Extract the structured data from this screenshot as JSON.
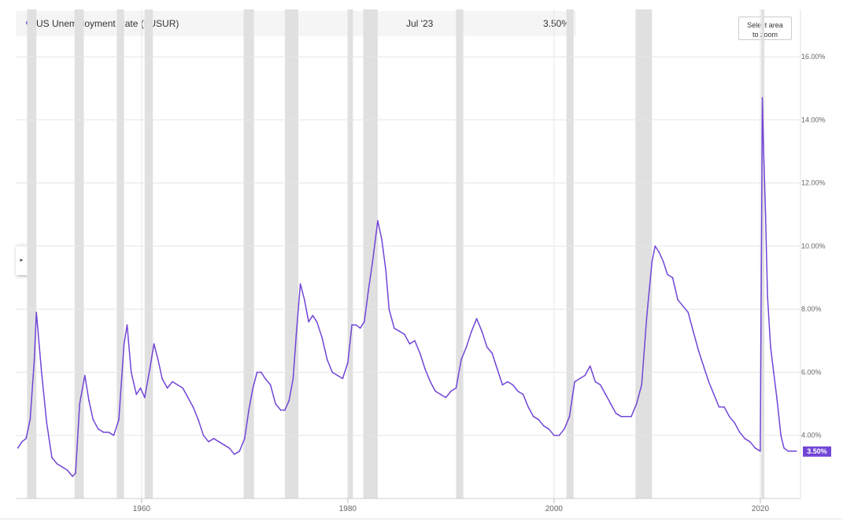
{
  "legend": {
    "series_name": "US Unemployment Rate (I:USUR)",
    "date": "Jul '23",
    "value": "3.50%"
  },
  "controls": {
    "zoom_label_line1": "Select area",
    "zoom_label_line2": "to zoom",
    "expand_arrow": "▸"
  },
  "colors": {
    "line": "#7145d6",
    "recession_band": "#e0e0e0",
    "grid": "#e6e6e6",
    "label_text": "#666666"
  },
  "chart_data": {
    "type": "line",
    "title": "",
    "xlabel": "",
    "ylabel": "",
    "xlim": [
      1947.8,
      2023.9
    ],
    "ylim": [
      2.0,
      17.5
    ],
    "grid": true,
    "y_ticks": [
      {
        "value": 4,
        "label": "4.00%"
      },
      {
        "value": 6,
        "label": "6.00%"
      },
      {
        "value": 8,
        "label": "8.00%"
      },
      {
        "value": 10,
        "label": "10.00%"
      },
      {
        "value": 12,
        "label": "12.00%"
      },
      {
        "value": 14,
        "label": "14.00%"
      },
      {
        "value": 16,
        "label": "16.00%"
      }
    ],
    "x_ticks": [
      {
        "value": 1960,
        "label": "1960"
      },
      {
        "value": 1980,
        "label": "1980"
      },
      {
        "value": 2000,
        "label": "2000"
      },
      {
        "value": 2020,
        "label": "2020"
      }
    ],
    "last_value_label": "3.50%",
    "recessions": [
      [
        1948.9,
        1949.8
      ],
      [
        1953.5,
        1954.4
      ],
      [
        1957.6,
        1958.3
      ],
      [
        1960.3,
        1961.1
      ],
      [
        1969.9,
        1970.9
      ],
      [
        1973.9,
        1975.2
      ],
      [
        1980.0,
        1980.5
      ],
      [
        1981.5,
        1982.9
      ],
      [
        1990.5,
        1991.2
      ],
      [
        2001.2,
        2001.9
      ],
      [
        2007.9,
        2009.5
      ],
      [
        2020.1,
        2020.4
      ]
    ],
    "series": [
      {
        "name": "US Unemployment Rate (I:USUR)",
        "x": [
          1948.0,
          1948.4,
          1948.8,
          1949.2,
          1949.6,
          1949.8,
          1950.3,
          1950.8,
          1951.3,
          1951.8,
          1952.3,
          1952.8,
          1953.3,
          1953.6,
          1954.0,
          1954.5,
          1954.9,
          1955.3,
          1955.8,
          1956.3,
          1956.8,
          1957.3,
          1957.8,
          1958.3,
          1958.6,
          1959.0,
          1959.5,
          1959.9,
          1960.3,
          1960.8,
          1961.2,
          1961.6,
          1962.0,
          1962.5,
          1963.0,
          1963.5,
          1964.0,
          1964.5,
          1965.0,
          1965.5,
          1966.0,
          1966.5,
          1967.0,
          1967.5,
          1968.0,
          1968.5,
          1969.0,
          1969.5,
          1970.0,
          1970.4,
          1970.8,
          1971.2,
          1971.6,
          1972.0,
          1972.5,
          1973.0,
          1973.5,
          1973.9,
          1974.3,
          1974.7,
          1975.0,
          1975.4,
          1975.8,
          1976.2,
          1976.6,
          1977.0,
          1977.5,
          1978.0,
          1978.5,
          1979.0,
          1979.5,
          1980.0,
          1980.4,
          1980.8,
          1981.2,
          1981.6,
          1982.0,
          1982.4,
          1982.9,
          1983.3,
          1983.7,
          1984.0,
          1984.5,
          1985.0,
          1985.5,
          1986.0,
          1986.5,
          1987.0,
          1987.5,
          1988.0,
          1988.5,
          1989.0,
          1989.5,
          1990.0,
          1990.5,
          1991.0,
          1991.5,
          1992.0,
          1992.5,
          1993.0,
          1993.5,
          1994.0,
          1994.5,
          1995.0,
          1995.5,
          1996.0,
          1996.5,
          1997.0,
          1997.5,
          1998.0,
          1998.5,
          1999.0,
          1999.5,
          2000.0,
          2000.5,
          2001.0,
          2001.5,
          2002.0,
          2002.5,
          2003.0,
          2003.5,
          2004.0,
          2004.5,
          2005.0,
          2005.5,
          2006.0,
          2006.5,
          2007.0,
          2007.5,
          2008.0,
          2008.5,
          2009.0,
          2009.5,
          2009.8,
          2010.2,
          2010.6,
          2011.0,
          2011.5,
          2012.0,
          2012.5,
          2013.0,
          2013.5,
          2014.0,
          2014.5,
          2015.0,
          2015.5,
          2016.0,
          2016.5,
          2017.0,
          2017.5,
          2018.0,
          2018.5,
          2019.0,
          2019.5,
          2020.0,
          2020.2,
          2020.3,
          2020.5,
          2020.7,
          2021.0,
          2021.3,
          2021.6,
          2022.0,
          2022.3,
          2022.7,
          2023.0,
          2023.5
        ],
        "values": [
          3.6,
          3.8,
          3.9,
          4.5,
          6.4,
          7.9,
          6.0,
          4.4,
          3.3,
          3.1,
          3.0,
          2.9,
          2.7,
          2.8,
          5.0,
          5.9,
          5.1,
          4.5,
          4.2,
          4.1,
          4.1,
          4.0,
          4.5,
          6.9,
          7.5,
          6.0,
          5.3,
          5.5,
          5.2,
          6.1,
          6.9,
          6.4,
          5.8,
          5.5,
          5.7,
          5.6,
          5.5,
          5.2,
          4.9,
          4.5,
          4.0,
          3.8,
          3.9,
          3.8,
          3.7,
          3.6,
          3.4,
          3.5,
          3.9,
          4.8,
          5.5,
          6.0,
          6.0,
          5.8,
          5.6,
          5.0,
          4.8,
          4.8,
          5.1,
          5.8,
          7.2,
          8.8,
          8.3,
          7.6,
          7.8,
          7.6,
          7.1,
          6.4,
          6.0,
          5.9,
          5.8,
          6.3,
          7.5,
          7.5,
          7.4,
          7.6,
          8.6,
          9.5,
          10.8,
          10.2,
          9.2,
          8.0,
          7.4,
          7.3,
          7.2,
          6.9,
          7.0,
          6.6,
          6.1,
          5.7,
          5.4,
          5.3,
          5.2,
          5.4,
          5.5,
          6.4,
          6.8,
          7.3,
          7.7,
          7.3,
          6.8,
          6.6,
          6.1,
          5.6,
          5.7,
          5.6,
          5.4,
          5.3,
          4.9,
          4.6,
          4.5,
          4.3,
          4.2,
          4.0,
          4.0,
          4.2,
          4.6,
          5.7,
          5.8,
          5.9,
          6.2,
          5.7,
          5.6,
          5.3,
          5.0,
          4.7,
          4.6,
          4.6,
          4.6,
          5.0,
          5.6,
          7.8,
          9.5,
          10.0,
          9.8,
          9.5,
          9.1,
          9.0,
          8.3,
          8.1,
          7.9,
          7.3,
          6.7,
          6.2,
          5.7,
          5.3,
          4.9,
          4.9,
          4.6,
          4.4,
          4.1,
          3.9,
          3.8,
          3.6,
          3.5,
          14.7,
          13.3,
          11.1,
          8.4,
          6.8,
          6.0,
          5.2,
          4.0,
          3.6,
          3.5,
          3.5,
          3.5
        ]
      }
    ]
  }
}
